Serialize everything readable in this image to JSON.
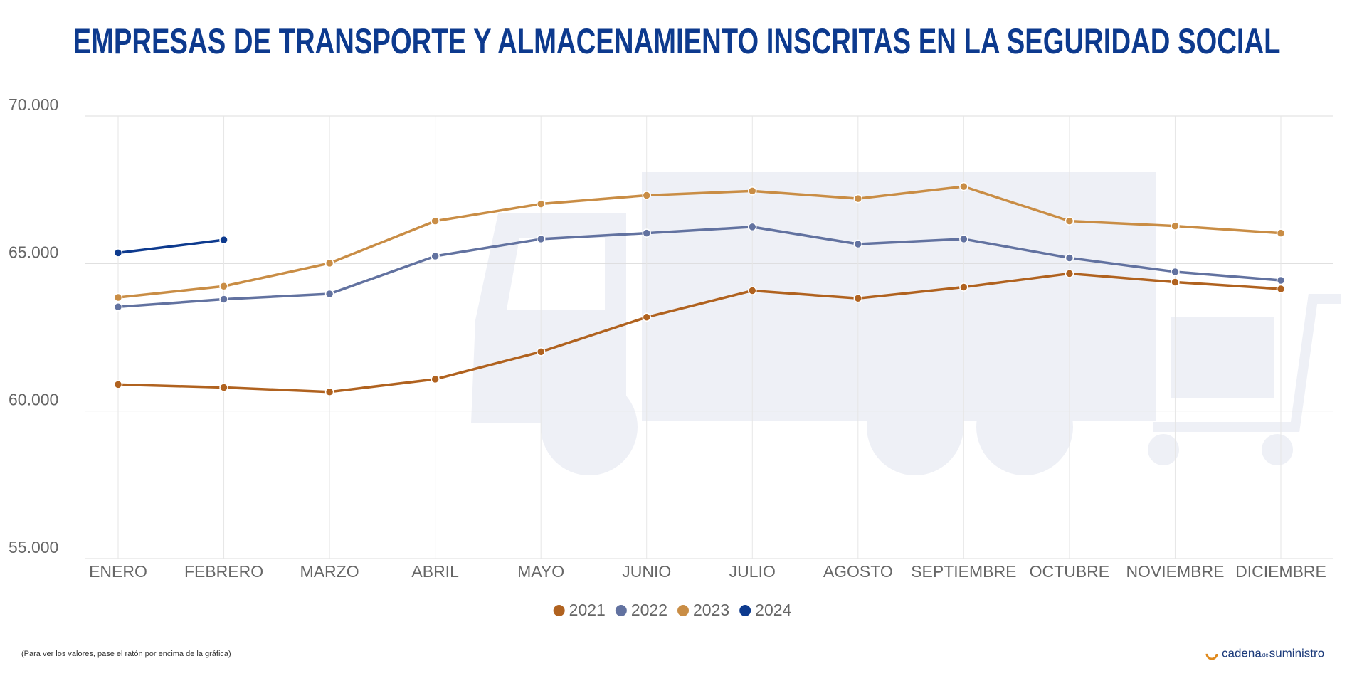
{
  "chart_data": {
    "type": "line",
    "title": "EMPRESAS DE TRANSPORTE Y ALMACENAMIENTO INSCRITAS EN LA SEGURIDAD SOCIAL",
    "categories": [
      "ENERO",
      "FEBRERO",
      "MARZO",
      "ABRIL",
      "MAYO",
      "JUNIO",
      "JULIO",
      "AGOSTO",
      "SEPTIEMBRE",
      "OCTUBRE",
      "NOVIEMBRE",
      "DICIEMBRE"
    ],
    "series": [
      {
        "name": "2021",
        "color": "#b0621f",
        "values": [
          60900,
          60800,
          60650,
          61080,
          62010,
          63180,
          64080,
          63820,
          64200,
          64660,
          64370,
          64140
        ]
      },
      {
        "name": "2022",
        "color": "#6272a0",
        "values": [
          63530,
          63790,
          63970,
          65250,
          65830,
          66030,
          66240,
          65660,
          65830,
          65190,
          64720,
          64430
        ]
      },
      {
        "name": "2023",
        "color": "#c98d45",
        "values": [
          63850,
          64230,
          65010,
          66440,
          67020,
          67310,
          67460,
          67200,
          67610,
          66440,
          66270,
          66030
        ]
      },
      {
        "name": "2024",
        "color": "#0d3a8e",
        "values": [
          65360,
          65800,
          null,
          null,
          null,
          null,
          null,
          null,
          null,
          null,
          null,
          null
        ]
      }
    ],
    "ylim": [
      55000,
      70000
    ],
    "yticks": [
      {
        "value": 55000,
        "label": "55.000"
      },
      {
        "value": 60000,
        "label": "60.000"
      },
      {
        "value": 65000,
        "label": "65.000"
      },
      {
        "value": 70000,
        "label": "70.000"
      }
    ],
    "grid": true,
    "legend": "bottom",
    "footnote": "(Para ver los valores, pase el ratón por encima de la gráfica)",
    "brand": [
      "cadena",
      "de",
      "suministro"
    ]
  }
}
